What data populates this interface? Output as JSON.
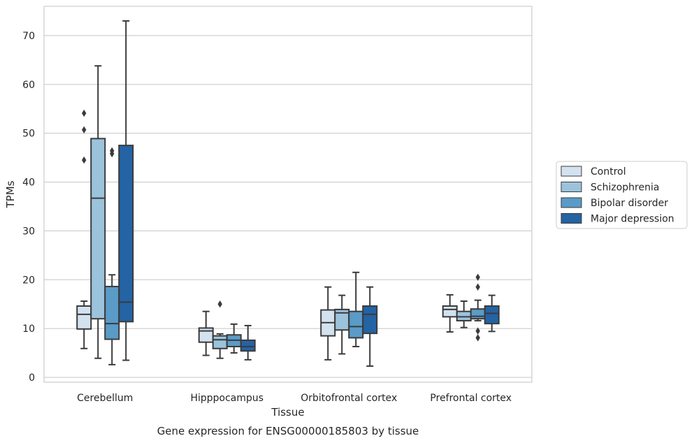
{
  "caption": "Gene expression for ENSG00000185803 by tissue",
  "chart_data": {
    "type": "box",
    "xlabel": "Tissue",
    "ylabel": "TPMs",
    "ylim": [
      -1,
      76
    ],
    "yticks": [
      0,
      10,
      20,
      30,
      40,
      50,
      60,
      70
    ],
    "grid": "horizontal",
    "legend_position": "right",
    "categories": [
      "Cerebellum",
      "Hipppocampus",
      "Orbitofrontal cortex",
      "Prefrontal cortex"
    ],
    "series": [
      {
        "name": "Control",
        "color": "#d4e2f0",
        "boxes": [
          {
            "whislo": 5.9,
            "q1": 9.9,
            "med": 12.9,
            "q3": 14.6,
            "whishi": 15.6,
            "fliers": [
              44.5,
              50.7,
              54.1
            ]
          },
          {
            "whislo": 4.5,
            "q1": 7.2,
            "med": 9.5,
            "q3": 10.1,
            "whishi": 13.5,
            "fliers": []
          },
          {
            "whislo": 3.6,
            "q1": 8.5,
            "med": 11.2,
            "q3": 13.8,
            "whishi": 18.5,
            "fliers": []
          },
          {
            "whislo": 9.3,
            "q1": 12.4,
            "med": 13.9,
            "q3": 14.6,
            "whishi": 16.9,
            "fliers": []
          }
        ]
      },
      {
        "name": "Schizophrenia",
        "color": "#9cc3dc",
        "boxes": [
          {
            "whislo": 3.9,
            "q1": 12.0,
            "med": 36.7,
            "q3": 48.9,
            "whishi": 63.8,
            "fliers": []
          },
          {
            "whislo": 3.9,
            "q1": 5.9,
            "med": 7.7,
            "q3": 8.5,
            "whishi": 8.9,
            "fliers": [
              15.0
            ]
          },
          {
            "whislo": 4.8,
            "q1": 9.7,
            "med": 13.2,
            "q3": 13.9,
            "whishi": 16.8,
            "fliers": []
          },
          {
            "whislo": 10.2,
            "q1": 11.6,
            "med": 12.4,
            "q3": 13.5,
            "whishi": 15.6,
            "fliers": []
          }
        ]
      },
      {
        "name": "Bipolar disorder",
        "color": "#5a9bc8",
        "boxes": [
          {
            "whislo": 2.6,
            "q1": 7.8,
            "med": 11.0,
            "q3": 18.6,
            "whishi": 21.0,
            "fliers": [
              45.8,
              46.4
            ]
          },
          {
            "whislo": 5.0,
            "q1": 6.3,
            "med": 7.6,
            "q3": 8.7,
            "whishi": 10.9,
            "fliers": []
          },
          {
            "whislo": 6.3,
            "q1": 8.1,
            "med": 10.4,
            "q3": 13.5,
            "whishi": 21.5,
            "fliers": []
          },
          {
            "whislo": 11.6,
            "q1": 12.0,
            "med": 12.5,
            "q3": 14.0,
            "whishi": 15.8,
            "fliers": [
              8.1,
              9.5,
              18.5,
              20.5
            ]
          }
        ]
      },
      {
        "name": "Major depression",
        "color": "#2463a4",
        "boxes": [
          {
            "whislo": 3.5,
            "q1": 11.4,
            "med": 15.4,
            "q3": 47.5,
            "whishi": 73.0,
            "fliers": []
          },
          {
            "whislo": 3.6,
            "q1": 5.4,
            "med": 6.3,
            "q3": 7.6,
            "whishi": 10.6,
            "fliers": []
          },
          {
            "whislo": 2.3,
            "q1": 9.0,
            "med": 12.9,
            "q3": 14.6,
            "whishi": 18.5,
            "fliers": []
          },
          {
            "whislo": 9.4,
            "q1": 11.0,
            "med": 13.1,
            "q3": 14.6,
            "whishi": 16.8,
            "fliers": []
          }
        ]
      }
    ]
  }
}
